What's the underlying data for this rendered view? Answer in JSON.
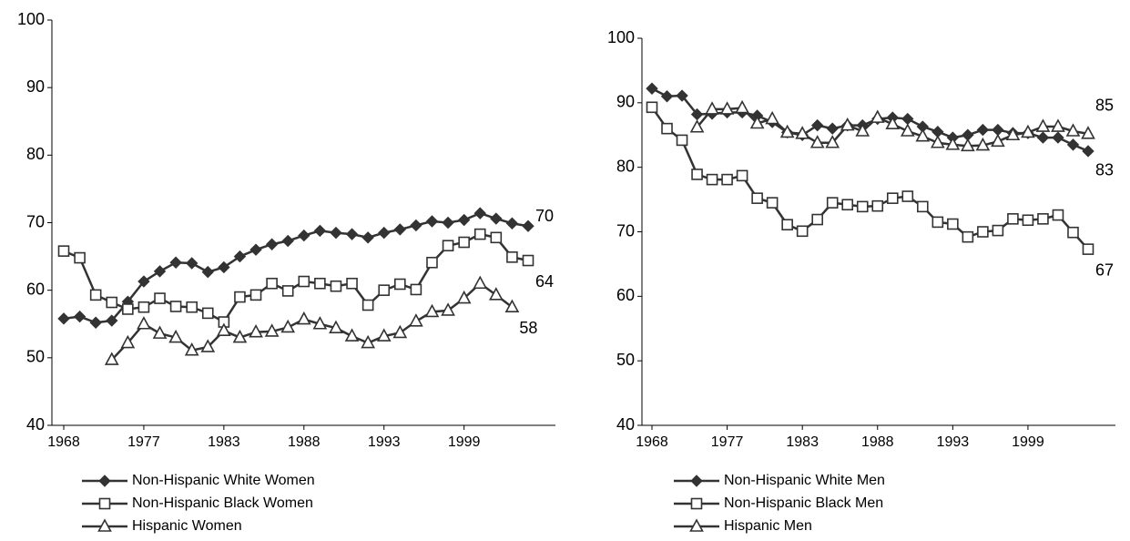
{
  "chart_data": [
    {
      "type": "line",
      "categories": [
        "1968",
        null,
        null,
        null,
        null,
        "1977",
        null,
        null,
        null,
        null,
        "1983",
        null,
        null,
        null,
        null,
        "1988",
        null,
        null,
        null,
        null,
        "1993",
        null,
        null,
        null,
        null,
        "1999",
        null,
        null,
        null,
        null
      ],
      "ylim": [
        40,
        100
      ],
      "yticks": [
        40,
        50,
        60,
        70,
        80,
        90,
        100
      ],
      "series": [
        {
          "name": "Non-Hispanic White Women",
          "color": "#333333",
          "marker": "diamond",
          "values": [
            55.8,
            56.1,
            55.2,
            55.5,
            58.3,
            61.3,
            62.8,
            64.1,
            64,
            62.7,
            63.4,
            65,
            66,
            66.8,
            67.3,
            68.1,
            68.8,
            68.5,
            68.3,
            67.8,
            68.5,
            69,
            69.6,
            70.2,
            70,
            70.4,
            71.4,
            70.6,
            69.9,
            69.5
          ],
          "value_labels": [
            null,
            null,
            null,
            null,
            null,
            null,
            null,
            null,
            null,
            null,
            null,
            null,
            null,
            null,
            null,
            null,
            null,
            null,
            null,
            null,
            null,
            null,
            null,
            null,
            null,
            null,
            null,
            null,
            null,
            "70"
          ]
        },
        {
          "name": "Non-Hispanic Black Women",
          "color": "#333333",
          "marker": "square",
          "values": [
            65.8,
            64.8,
            59.3,
            58.2,
            57.2,
            57.5,
            58.8,
            57.6,
            57.5,
            56.6,
            55.3,
            59,
            59.3,
            61,
            59.9,
            61.3,
            61,
            60.6,
            61,
            57.8,
            60,
            60.9,
            60.1,
            64.1,
            66.6,
            67.1,
            68.3,
            67.8,
            64.9,
            64.4
          ],
          "value_labels": [
            null,
            null,
            null,
            null,
            null,
            null,
            null,
            null,
            null,
            null,
            null,
            null,
            null,
            null,
            null,
            null,
            null,
            null,
            null,
            null,
            null,
            null,
            null,
            null,
            null,
            null,
            null,
            null,
            null,
            "64"
          ]
        },
        {
          "name": "Hispanic Women",
          "color": "#333333",
          "marker": "triangle",
          "values": [
            null,
            null,
            null,
            49.7,
            52.2,
            55,
            53.6,
            53,
            51.1,
            51.6,
            54,
            53,
            53.8,
            53.9,
            54.5,
            55.7,
            55,
            54.4,
            53.2,
            52.2,
            53.2,
            53.7,
            55.4,
            56.8,
            57,
            58.8,
            61,
            59.3,
            57.5,
            null
          ],
          "value_labels": [
            null,
            null,
            null,
            null,
            null,
            null,
            null,
            null,
            null,
            null,
            null,
            null,
            null,
            null,
            null,
            null,
            null,
            null,
            null,
            null,
            null,
            null,
            null,
            null,
            null,
            null,
            null,
            null,
            "58",
            null
          ]
        }
      ]
    },
    {
      "type": "line",
      "categories": [
        "1968",
        null,
        null,
        null,
        null,
        "1977",
        null,
        null,
        null,
        null,
        "1983",
        null,
        null,
        null,
        null,
        "1988",
        null,
        null,
        null,
        null,
        "1993",
        null,
        null,
        null,
        null,
        "1999",
        null,
        null,
        null,
        null
      ],
      "ylim": [
        40,
        100
      ],
      "yticks": [
        40,
        50,
        60,
        70,
        80,
        90,
        100
      ],
      "series": [
        {
          "name": "Non-Hispanic White Men",
          "color": "#333333",
          "marker": "diamond",
          "values": [
            92.2,
            91,
            91.1,
            88.2,
            88.3,
            88.5,
            88.5,
            88,
            87,
            85.4,
            85,
            86.5,
            86,
            86.5,
            86.5,
            87.5,
            87.7,
            87.5,
            86.3,
            85.5,
            84.6,
            85,
            85.8,
            85.8,
            85.3,
            85.3,
            84.6,
            84.6,
            83.5,
            82.5
          ],
          "value_labels": [
            null,
            null,
            null,
            null,
            null,
            null,
            null,
            null,
            null,
            null,
            null,
            null,
            null,
            null,
            null,
            null,
            null,
            null,
            null,
            null,
            null,
            null,
            null,
            null,
            null,
            null,
            null,
            null,
            null,
            "83"
          ]
        },
        {
          "name": "Non-Hispanic Black Men",
          "color": "#333333",
          "marker": "square",
          "values": [
            89.3,
            86,
            84.2,
            78.9,
            78.1,
            78.1,
            78.7,
            75.2,
            74.5,
            71.1,
            70.1,
            71.9,
            74.5,
            74.2,
            73.9,
            74,
            75.2,
            75.5,
            73.9,
            71.5,
            71.2,
            69.2,
            70,
            70.2,
            72,
            71.8,
            72,
            72.6,
            69.9,
            67.3
          ],
          "value_labels": [
            null,
            null,
            null,
            null,
            null,
            null,
            null,
            null,
            null,
            null,
            null,
            null,
            null,
            null,
            null,
            null,
            null,
            null,
            null,
            null,
            null,
            null,
            null,
            null,
            null,
            null,
            null,
            null,
            null,
            "67"
          ]
        },
        {
          "name": "Hispanic Men",
          "color": "#333333",
          "marker": "triangle",
          "values": [
            null,
            null,
            null,
            86.2,
            89,
            89,
            89.2,
            86.8,
            87.5,
            85.4,
            85.2,
            83.8,
            83.8,
            86.5,
            85.6,
            87.7,
            86.7,
            85.6,
            84.8,
            83.8,
            83.5,
            83.3,
            83.4,
            84,
            85,
            85.4,
            86.3,
            86.3,
            85.6,
            85.2
          ],
          "value_labels": [
            null,
            null,
            null,
            null,
            null,
            null,
            null,
            null,
            null,
            null,
            null,
            null,
            null,
            null,
            null,
            null,
            null,
            null,
            null,
            null,
            null,
            null,
            null,
            null,
            null,
            null,
            null,
            null,
            null,
            "85"
          ]
        }
      ]
    }
  ]
}
